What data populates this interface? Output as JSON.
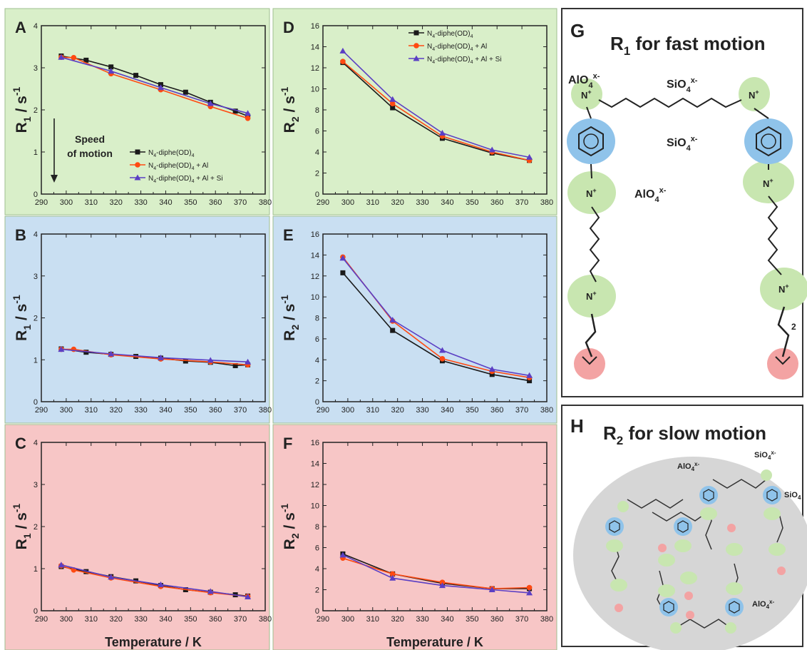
{
  "colors": {
    "panel_green": "#d9efc9",
    "panel_blue": "#c9dff2",
    "panel_red": "#f7c6c6",
    "series_black": "#1a1a1a",
    "series_red": "#ff4a12",
    "series_blue": "#5b3fc4",
    "bubble_green": "#c8e6b0",
    "bubble_blue": "#8fc3ea",
    "bubble_red": "#f3a3a3"
  },
  "xlabel": "Temperature / K",
  "xticks": [
    "290",
    "300",
    "310",
    "320",
    "330",
    "340",
    "350",
    "360",
    "370",
    "380"
  ],
  "yticks_r1": [
    "0",
    "1",
    "2",
    "3",
    "4"
  ],
  "yticks_r2": [
    "0",
    "2",
    "4",
    "6",
    "8",
    "10",
    "12",
    "14",
    "16"
  ],
  "ylabel_r1": {
    "base": "R",
    "sub": "1",
    "mid": " / s",
    "sup": "-1"
  },
  "ylabel_r2": {
    "base": "R",
    "sub": "2",
    "mid": " / s",
    "sup": "-1"
  },
  "speed_text": [
    "Speed",
    "of motion"
  ],
  "legend": [
    {
      "base": "N",
      "sub": "4",
      "mid": "-diphe(OD)",
      "sub2": "4",
      "tail": ""
    },
    {
      "base": "N",
      "sub": "4",
      "mid": "-diphe(OD)",
      "sub2": "4",
      "tail": " + Al"
    },
    {
      "base": "N",
      "sub": "4",
      "mid": "-diphe(OD)",
      "sub2": "4",
      "tail": " + Al + Si"
    }
  ],
  "chart_data": [
    {
      "panel": "A",
      "type": "line",
      "ylabel": "R1 / s-1",
      "xlim": [
        290,
        380
      ],
      "ylim": [
        0,
        4
      ],
      "series": [
        {
          "name": "N4-diphe(OD)4",
          "x": [
            298,
            308,
            318,
            328,
            338,
            348,
            358,
            368,
            373
          ],
          "y": [
            3.28,
            3.18,
            3.02,
            2.82,
            2.6,
            2.42,
            2.18,
            1.97,
            1.85
          ]
        },
        {
          "name": "N4-diphe(OD)4 + Al",
          "x": [
            298,
            303,
            318,
            338,
            358,
            373
          ],
          "y": [
            3.25,
            3.24,
            2.86,
            2.48,
            2.08,
            1.8
          ]
        },
        {
          "name": "N4-diphe(OD)4 + Al + Si",
          "x": [
            298,
            318,
            338,
            358,
            373
          ],
          "y": [
            3.25,
            2.92,
            2.53,
            2.15,
            1.92
          ]
        }
      ]
    },
    {
      "panel": "B",
      "type": "line",
      "ylabel": "R1 / s-1",
      "xlim": [
        290,
        380
      ],
      "ylim": [
        0,
        4
      ],
      "series": [
        {
          "name": "N4-diphe(OD)4",
          "x": [
            298,
            308,
            318,
            328,
            338,
            348,
            358,
            368,
            373
          ],
          "y": [
            1.26,
            1.18,
            1.13,
            1.08,
            1.04,
            0.97,
            0.94,
            0.86,
            0.88
          ]
        },
        {
          "name": "N4-diphe(OD)4 + Al",
          "x": [
            298,
            303,
            318,
            338,
            358,
            373
          ],
          "y": [
            1.25,
            1.25,
            1.12,
            1.02,
            0.95,
            0.88
          ]
        },
        {
          "name": "N4-diphe(OD)4 + Al + Si",
          "x": [
            298,
            318,
            338,
            358,
            373
          ],
          "y": [
            1.25,
            1.14,
            1.05,
            0.99,
            0.95
          ]
        }
      ]
    },
    {
      "panel": "C",
      "type": "line",
      "ylabel": "R1 / s-1",
      "xlim": [
        290,
        380
      ],
      "ylim": [
        0,
        4
      ],
      "series": [
        {
          "name": "N4-diphe(OD)4",
          "x": [
            298,
            308,
            318,
            328,
            338,
            348,
            358,
            368,
            373
          ],
          "y": [
            1.05,
            0.93,
            0.81,
            0.71,
            0.6,
            0.5,
            0.44,
            0.38,
            0.35
          ]
        },
        {
          "name": "N4-diphe(OD)4 + Al",
          "x": [
            298,
            303,
            318,
            338,
            358,
            373
          ],
          "y": [
            1.07,
            0.97,
            0.78,
            0.58,
            0.43,
            0.34
          ]
        },
        {
          "name": "N4-diphe(OD)4 + Al + Si",
          "x": [
            298,
            318,
            338,
            358,
            373
          ],
          "y": [
            1.09,
            0.8,
            0.62,
            0.46,
            0.33
          ]
        }
      ]
    },
    {
      "panel": "D",
      "type": "line",
      "ylabel": "R2 / s-1",
      "xlim": [
        290,
        380
      ],
      "ylim": [
        0,
        16
      ],
      "series": [
        {
          "name": "N4-diphe(OD)4",
          "x": [
            298,
            318,
            338,
            358,
            373
          ],
          "y": [
            12.5,
            8.2,
            5.3,
            3.9,
            3.2
          ]
        },
        {
          "name": "N4-diphe(OD)4 + Al",
          "x": [
            298,
            318,
            338,
            358,
            373
          ],
          "y": [
            12.6,
            8.6,
            5.5,
            4.0,
            3.2
          ]
        },
        {
          "name": "N4-diphe(OD)4 + Al + Si",
          "x": [
            298,
            318,
            338,
            358,
            373
          ],
          "y": [
            13.6,
            9.0,
            5.8,
            4.2,
            3.5
          ]
        }
      ]
    },
    {
      "panel": "E",
      "type": "line",
      "ylabel": "R2 / s-1",
      "xlim": [
        290,
        380
      ],
      "ylim": [
        0,
        16
      ],
      "series": [
        {
          "name": "N4-diphe(OD)4",
          "x": [
            298,
            318,
            338,
            358,
            373
          ],
          "y": [
            12.3,
            6.8,
            3.9,
            2.6,
            2.0
          ]
        },
        {
          "name": "N4-diphe(OD)4 + Al",
          "x": [
            298,
            318,
            338,
            358,
            373
          ],
          "y": [
            13.8,
            7.7,
            4.1,
            2.9,
            2.3
          ]
        },
        {
          "name": "N4-diphe(OD)4 + Al + Si",
          "x": [
            298,
            318,
            338,
            358,
            373
          ],
          "y": [
            13.7,
            7.8,
            4.9,
            3.1,
            2.5
          ]
        }
      ]
    },
    {
      "panel": "F",
      "type": "line",
      "ylabel": "R2 / s-1",
      "xlim": [
        290,
        380
      ],
      "ylim": [
        0,
        16
      ],
      "series": [
        {
          "name": "N4-diphe(OD)4",
          "x": [
            298,
            318,
            338,
            358,
            373
          ],
          "y": [
            5.4,
            3.5,
            2.6,
            2.1,
            2.1
          ]
        },
        {
          "name": "N4-diphe(OD)4 + Al",
          "x": [
            298,
            318,
            338,
            358,
            373
          ],
          "y": [
            5.0,
            3.5,
            2.7,
            2.1,
            2.2
          ]
        },
        {
          "name": "N4-diphe(OD)4 + Al + Si",
          "x": [
            298,
            318,
            338,
            358,
            373
          ],
          "y": [
            5.3,
            3.1,
            2.4,
            2.0,
            1.7
          ]
        }
      ]
    }
  ],
  "panel_g": {
    "letter": "G",
    "title": {
      "base": "R",
      "sub": "1",
      "tail": " for fast motion"
    },
    "labels": [
      {
        "base": "AlO",
        "sub": "4",
        "sup": "x-"
      },
      {
        "base": "SiO",
        "sub": "4",
        "sup": "x-"
      },
      {
        "base": "SiO",
        "sub": "4",
        "sup": "x-"
      },
      {
        "base": "AlO",
        "sub": "4",
        "sup": "x-"
      }
    ],
    "n_plus": "N",
    "n_sup": "+",
    "sub_label": "2"
  },
  "panel_h": {
    "letter": "H",
    "title": {
      "base": "R",
      "sub": "2",
      "tail": " for slow motion"
    },
    "labels": [
      {
        "base": "AlO",
        "sub": "4",
        "sup": "x-"
      },
      {
        "base": "SiO",
        "sub": "4",
        "sup": "x-"
      },
      {
        "base": "SiO",
        "sub": "4",
        "sup": ""
      },
      {
        "base": "AlO",
        "sub": "4",
        "sup": "x-"
      }
    ]
  }
}
